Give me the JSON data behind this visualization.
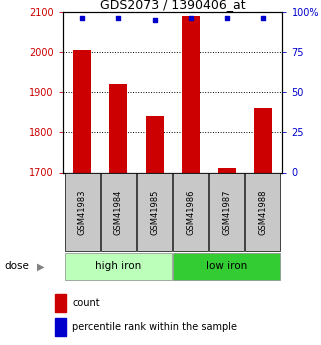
{
  "title": "GDS2073 / 1390406_at",
  "samples": [
    "GSM41983",
    "GSM41984",
    "GSM41985",
    "GSM41986",
    "GSM41987",
    "GSM41988"
  ],
  "bar_values": [
    2005,
    1920,
    1840,
    2090,
    1710,
    1860
  ],
  "percentile_values": [
    96,
    96,
    95,
    96,
    96,
    96
  ],
  "ylim_left": [
    1700,
    2100
  ],
  "ylim_right": [
    0,
    100
  ],
  "yticks_left": [
    1700,
    1800,
    1900,
    2000,
    2100
  ],
  "yticks_right": [
    0,
    25,
    50,
    75,
    100
  ],
  "grid_values": [
    1800,
    1900,
    2000
  ],
  "bar_color": "#cc0000",
  "dot_color": "#0000cc",
  "bar_width": 0.5,
  "groups": [
    {
      "label": "high iron",
      "indices": [
        0,
        1,
        2
      ],
      "color": "#bbffbb"
    },
    {
      "label": "low iron",
      "indices": [
        3,
        4,
        5
      ],
      "color": "#33cc33"
    }
  ],
  "dose_label": "dose",
  "legend_count": "count",
  "legend_percentile": "percentile rank within the sample",
  "xlabel_color": "#cc0000",
  "ylabel_right_color": "#0000cc",
  "tick_gray_box_color": "#c8c8c8"
}
